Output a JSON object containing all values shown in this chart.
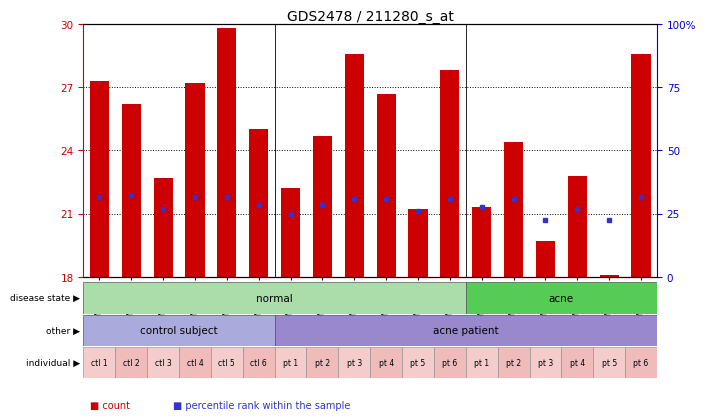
{
  "title": "GDS2478 / 211280_s_at",
  "samples": [
    "GSM148887",
    "GSM148888",
    "GSM148889",
    "GSM148890",
    "GSM148892",
    "GSM148894",
    "GSM148748",
    "GSM148763",
    "GSM148765",
    "GSM148767",
    "GSM148769",
    "GSM148771",
    "GSM148725",
    "GSM148762",
    "GSM148764",
    "GSM148766",
    "GSM148768",
    "GSM148770"
  ],
  "bar_heights": [
    27.3,
    26.2,
    22.7,
    27.2,
    29.8,
    25.0,
    22.2,
    24.7,
    28.6,
    26.7,
    21.2,
    27.8,
    21.3,
    24.4,
    19.7,
    22.8,
    18.1,
    28.6
  ],
  "blue_dot_y": [
    21.8,
    21.9,
    21.2,
    21.8,
    21.8,
    21.4,
    21.0,
    21.4,
    21.7,
    21.7,
    21.1,
    21.7,
    21.3,
    21.7,
    20.7,
    21.2,
    20.7,
    21.8
  ],
  "ylim_left": [
    18,
    30
  ],
  "yticks_left": [
    18,
    21,
    24,
    27,
    30
  ],
  "ylim_right": [
    0,
    100
  ],
  "yticks_right": [
    0,
    25,
    50,
    75,
    100
  ],
  "bar_color": "#cc0000",
  "dot_color": "#3333cc",
  "disease_state_groups": [
    {
      "label": "normal",
      "start": 0,
      "end": 12,
      "color": "#aaddaa"
    },
    {
      "label": "acne",
      "start": 12,
      "end": 18,
      "color": "#55cc55"
    }
  ],
  "other_groups": [
    {
      "label": "control subject",
      "start": 0,
      "end": 6,
      "color": "#aaaadd"
    },
    {
      "label": "acne patient",
      "start": 6,
      "end": 18,
      "color": "#9988cc"
    }
  ],
  "individual_labels": [
    "ctl 1",
    "ctl 2",
    "ctl 3",
    "ctl 4",
    "ctl 5",
    "ctl 6",
    "pt 1",
    "pt 2",
    "pt 3",
    "pt 4",
    "pt 5",
    "pt 6",
    "pt 1",
    "pt 2",
    "pt 3",
    "pt 4",
    "pt 5",
    "pt 6"
  ],
  "row_labels": [
    "disease state",
    "other",
    "individual"
  ],
  "legend_count_color": "#cc0000",
  "legend_pct_color": "#3333cc",
  "bg_color": "#ffffff",
  "title_fontsize": 10,
  "axis_label_color_left": "#cc0000",
  "axis_label_color_right": "#0000cc",
  "grid_yticks": [
    21,
    24,
    27
  ]
}
